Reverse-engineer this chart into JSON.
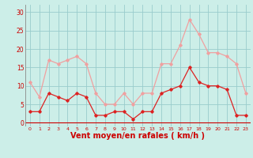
{
  "hours": [
    0,
    1,
    2,
    3,
    4,
    5,
    6,
    7,
    8,
    9,
    10,
    11,
    12,
    13,
    14,
    15,
    16,
    17,
    18,
    19,
    20,
    21,
    22,
    23
  ],
  "wind_avg": [
    3,
    3,
    8,
    7,
    6,
    8,
    7,
    2,
    2,
    3,
    3,
    1,
    3,
    3,
    8,
    9,
    10,
    15,
    11,
    10,
    10,
    9,
    2,
    2
  ],
  "wind_gust": [
    11,
    7,
    17,
    16,
    17,
    18,
    16,
    8,
    5,
    5,
    8,
    5,
    8,
    8,
    16,
    16,
    21,
    28,
    24,
    19,
    19,
    18,
    16,
    8
  ],
  "line_color_avg": "#dd2222",
  "line_color_gust": "#f0a0a0",
  "bg_color": "#cceee8",
  "grid_color": "#99cccc",
  "axis_color": "#cc0000",
  "xlabel": "Vent moyen/en rafales ( km/h )",
  "xlabel_fontsize": 7,
  "yticks": [
    0,
    5,
    10,
    15,
    20,
    25,
    30
  ],
  "ylim": [
    -1,
    32
  ],
  "xlim": [
    -0.5,
    23.5
  ]
}
